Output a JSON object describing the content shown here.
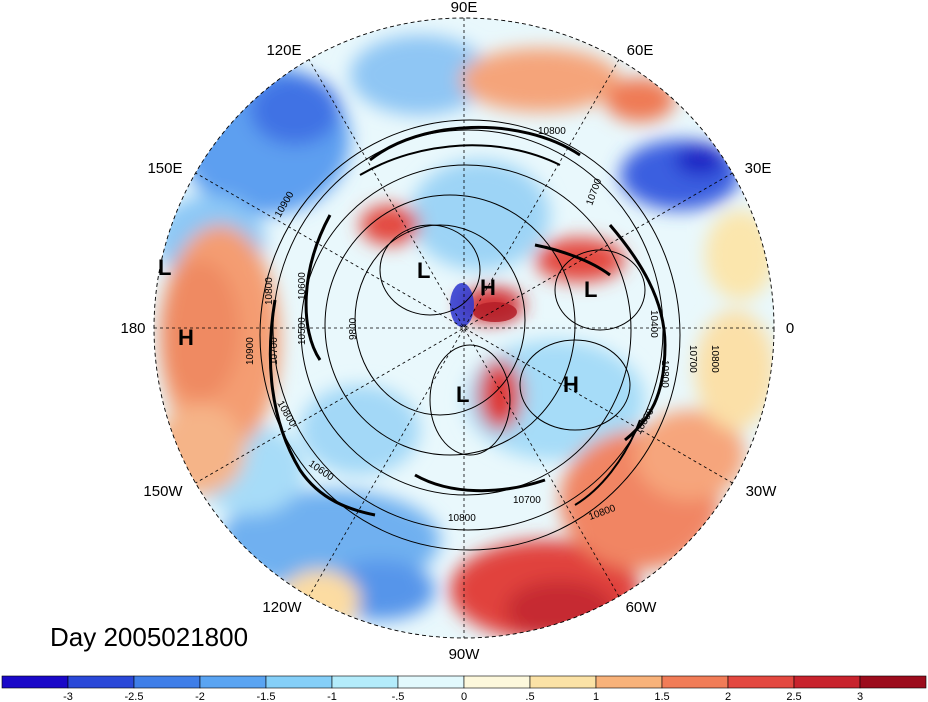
{
  "map": {
    "date_label": "Day 2005021800",
    "longitude_labels": {
      "top": "90E",
      "ne": "60E",
      "ene": "30E",
      "right": "0",
      "ese": "30W",
      "se": "60W",
      "bottom": "90W",
      "sw": "120W",
      "wsw": "150W",
      "left": "180",
      "wnw": "150E",
      "nw": "120E"
    },
    "pressure_centers": [
      {
        "id": "l1",
        "text": "L"
      },
      {
        "id": "h1",
        "text": "H"
      },
      {
        "id": "l2",
        "text": "L"
      },
      {
        "id": "h2",
        "text": "H"
      },
      {
        "id": "l3",
        "text": "L"
      },
      {
        "id": "h3",
        "text": "H"
      },
      {
        "id": "l4",
        "text": "L"
      }
    ],
    "contour_labels": [
      {
        "id": "c1",
        "text": "10800"
      },
      {
        "id": "c2",
        "text": "10700"
      },
      {
        "id": "c3",
        "text": "10900"
      },
      {
        "id": "c4",
        "text": "10800"
      },
      {
        "id": "c5",
        "text": "10600"
      },
      {
        "id": "c6",
        "text": "10900"
      },
      {
        "id": "c7",
        "text": "10700"
      },
      {
        "id": "c8",
        "text": "10500"
      },
      {
        "id": "c9",
        "text": "9800"
      },
      {
        "id": "c10",
        "text": "10400"
      },
      {
        "id": "c11",
        "text": "10700"
      },
      {
        "id": "c12",
        "text": "10800"
      },
      {
        "id": "c13",
        "text": "10800"
      },
      {
        "id": "c14",
        "text": "10700"
      },
      {
        "id": "c15",
        "text": "10800"
      },
      {
        "id": "c16",
        "text": "10800"
      },
      {
        "id": "c17",
        "text": "10600"
      },
      {
        "id": "c18",
        "text": "10800"
      },
      {
        "id": "c19",
        "text": "10800"
      }
    ]
  },
  "colorbar": {
    "colors": [
      "#1a08c8",
      "#2a48d8",
      "#3f7ee8",
      "#5aa4f2",
      "#85cff8",
      "#b4ecfb",
      "#e2f9fd",
      "#fdf8dc",
      "#fbe2a6",
      "#f8b27a",
      "#f17c57",
      "#e34840",
      "#c8232d",
      "#9c0c1c"
    ],
    "tick_labels": [
      "-3",
      "-2.5",
      "-2",
      "-1.5",
      "-1",
      "-.5",
      "0",
      ".5",
      "1",
      "1.5",
      "2",
      "2.5",
      "3"
    ]
  }
}
